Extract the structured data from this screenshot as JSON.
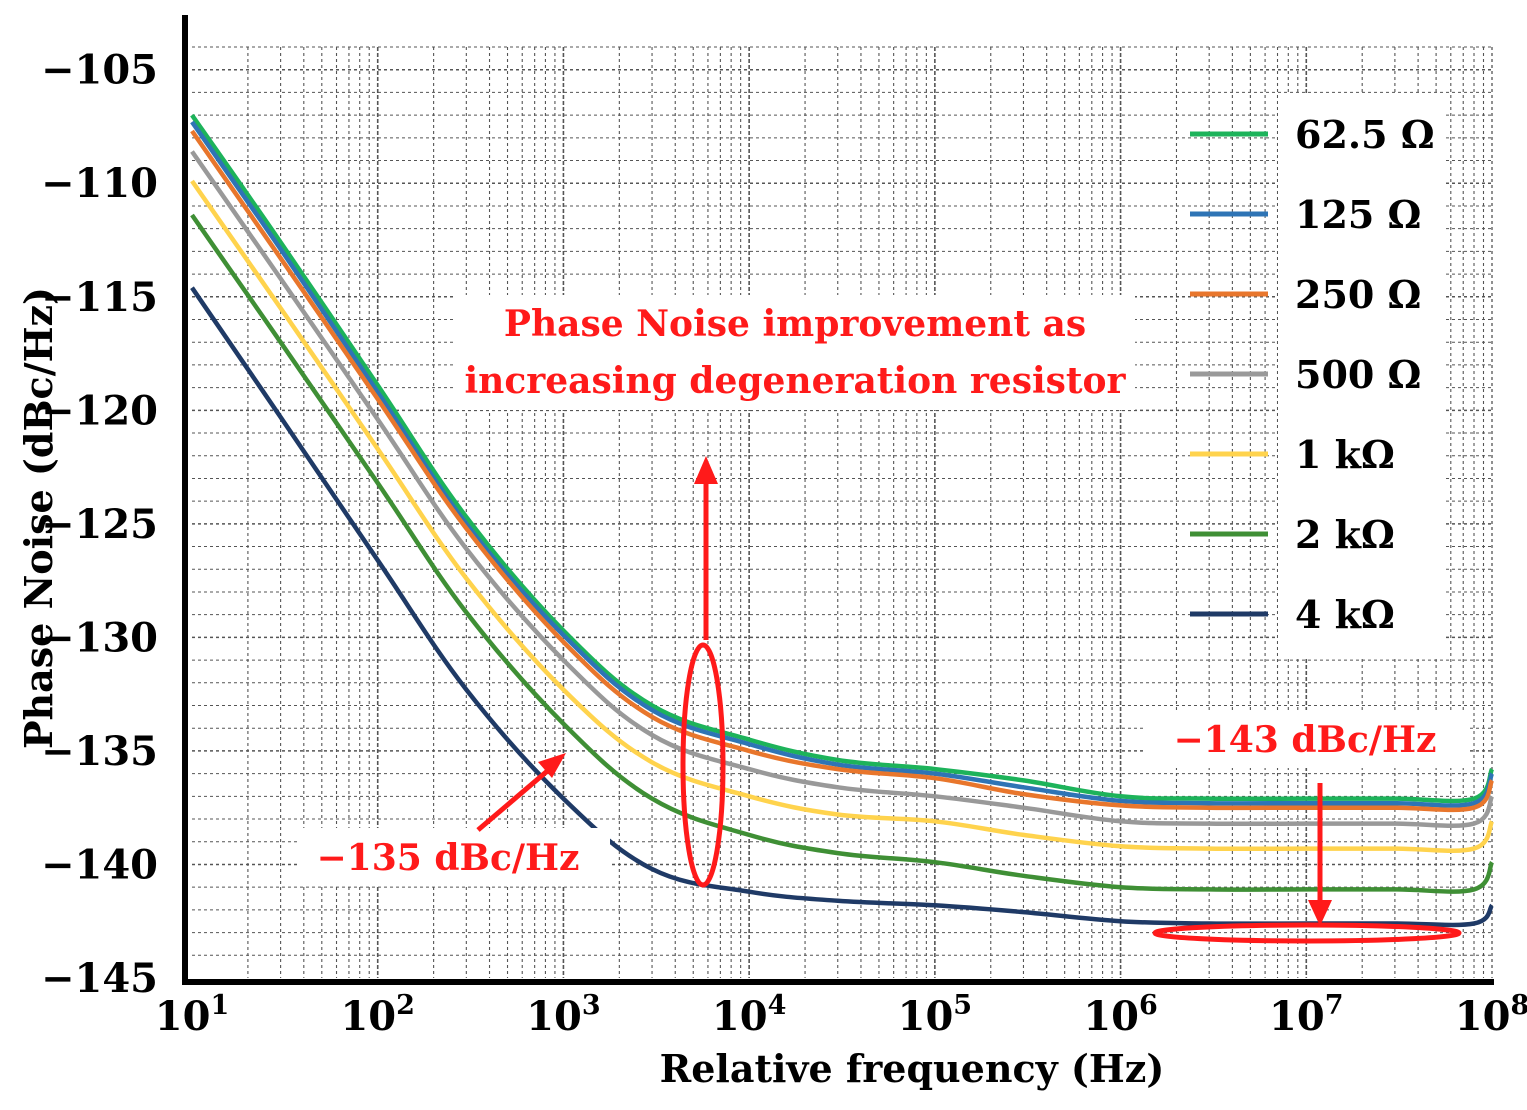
{
  "chart_data": {
    "type": "line",
    "xscale": "log",
    "xlabel": "Relative frequency (Hz)",
    "ylabel": "Phase Noise (dBc/Hz)",
    "xlim": [
      10,
      100000000
    ],
    "ylim": [
      -145,
      -104
    ],
    "x_ticks": [
      {
        "value": 10,
        "base": "10",
        "exp": "1"
      },
      {
        "value": 100,
        "base": "10",
        "exp": "2"
      },
      {
        "value": 1000,
        "base": "10",
        "exp": "3"
      },
      {
        "value": 10000,
        "base": "10",
        "exp": "4"
      },
      {
        "value": 100000,
        "base": "10",
        "exp": "5"
      },
      {
        "value": 1000000,
        "base": "10",
        "exp": "6"
      },
      {
        "value": 10000000,
        "base": "10",
        "exp": "7"
      },
      {
        "value": 100000000,
        "base": "10",
        "exp": "8"
      }
    ],
    "y_ticks": [
      {
        "value": -105,
        "label": "−105"
      },
      {
        "value": -110,
        "label": "−110"
      },
      {
        "value": -115,
        "label": "−115"
      },
      {
        "value": -120,
        "label": "−120"
      },
      {
        "value": -125,
        "label": "−125"
      },
      {
        "value": -130,
        "label": "−130"
      },
      {
        "value": -135,
        "label": "−135"
      },
      {
        "value": -140,
        "label": "−140"
      },
      {
        "value": -145,
        "label": "−145"
      }
    ],
    "grid": true,
    "legend_position": "top-right",
    "x": [
      10,
      30,
      100,
      300,
      1000,
      3000,
      10000,
      30000,
      100000,
      300000,
      1000000,
      3000000,
      10000000,
      30000000,
      80000000,
      100000000
    ],
    "series": [
      {
        "name": "62.5 Ω",
        "color": "#1db35a",
        "values": [
          -107.0,
          -112.6,
          -118.9,
          -124.7,
          -129.7,
          -133.0,
          -134.5,
          -135.4,
          -135.8,
          -136.3,
          -137.0,
          -137.1,
          -137.1,
          -137.1,
          -137.1,
          -135.8
        ]
      },
      {
        "name": "125 Ω",
        "color": "#2e74b5",
        "values": [
          -107.3,
          -112.9,
          -119.2,
          -125.0,
          -129.9,
          -133.2,
          -134.7,
          -135.6,
          -136.0,
          -136.6,
          -137.2,
          -137.3,
          -137.3,
          -137.3,
          -137.3,
          -136.0
        ]
      },
      {
        "name": "250 Ω",
        "color": "#e8762c",
        "values": [
          -107.7,
          -113.3,
          -119.5,
          -125.2,
          -130.2,
          -133.5,
          -135.0,
          -135.8,
          -136.2,
          -136.9,
          -137.4,
          -137.5,
          -137.5,
          -137.5,
          -137.5,
          -136.3
        ]
      },
      {
        "name": "500 Ω",
        "color": "#999999",
        "values": [
          -108.6,
          -114.2,
          -120.4,
          -126.1,
          -131.0,
          -134.3,
          -135.8,
          -136.6,
          -137.0,
          -137.5,
          -138.1,
          -138.2,
          -138.2,
          -138.2,
          -138.2,
          -137.0
        ]
      },
      {
        "name": "1 kΩ",
        "color": "#ffd34d",
        "values": [
          -109.9,
          -115.5,
          -121.7,
          -127.4,
          -132.3,
          -135.5,
          -137.0,
          -137.8,
          -138.1,
          -138.7,
          -139.2,
          -139.3,
          -139.3,
          -139.3,
          -139.3,
          -138.1
        ]
      },
      {
        "name": "2 kΩ",
        "color": "#3f8f35",
        "values": [
          -111.4,
          -117.0,
          -123.2,
          -128.9,
          -133.8,
          -137.1,
          -138.7,
          -139.5,
          -139.9,
          -140.5,
          -141.0,
          -141.1,
          -141.1,
          -141.1,
          -141.1,
          -139.9
        ]
      },
      {
        "name": "4 kΩ",
        "color": "#1f3a66",
        "values": [
          -114.6,
          -120.3,
          -126.6,
          -132.3,
          -137.1,
          -140.2,
          -141.2,
          -141.6,
          -141.8,
          -142.1,
          -142.5,
          -142.6,
          -142.6,
          -142.6,
          -142.6,
          -141.8
        ]
      }
    ],
    "annotations": {
      "improvement_line1": "Phase Noise improvement as",
      "improvement_line2": "increasing degeneration resistor",
      "label_135": "−135 dBc/Hz",
      "label_143": "−143 dBc/Hz"
    },
    "annotation_color": "#ff1a1a"
  }
}
